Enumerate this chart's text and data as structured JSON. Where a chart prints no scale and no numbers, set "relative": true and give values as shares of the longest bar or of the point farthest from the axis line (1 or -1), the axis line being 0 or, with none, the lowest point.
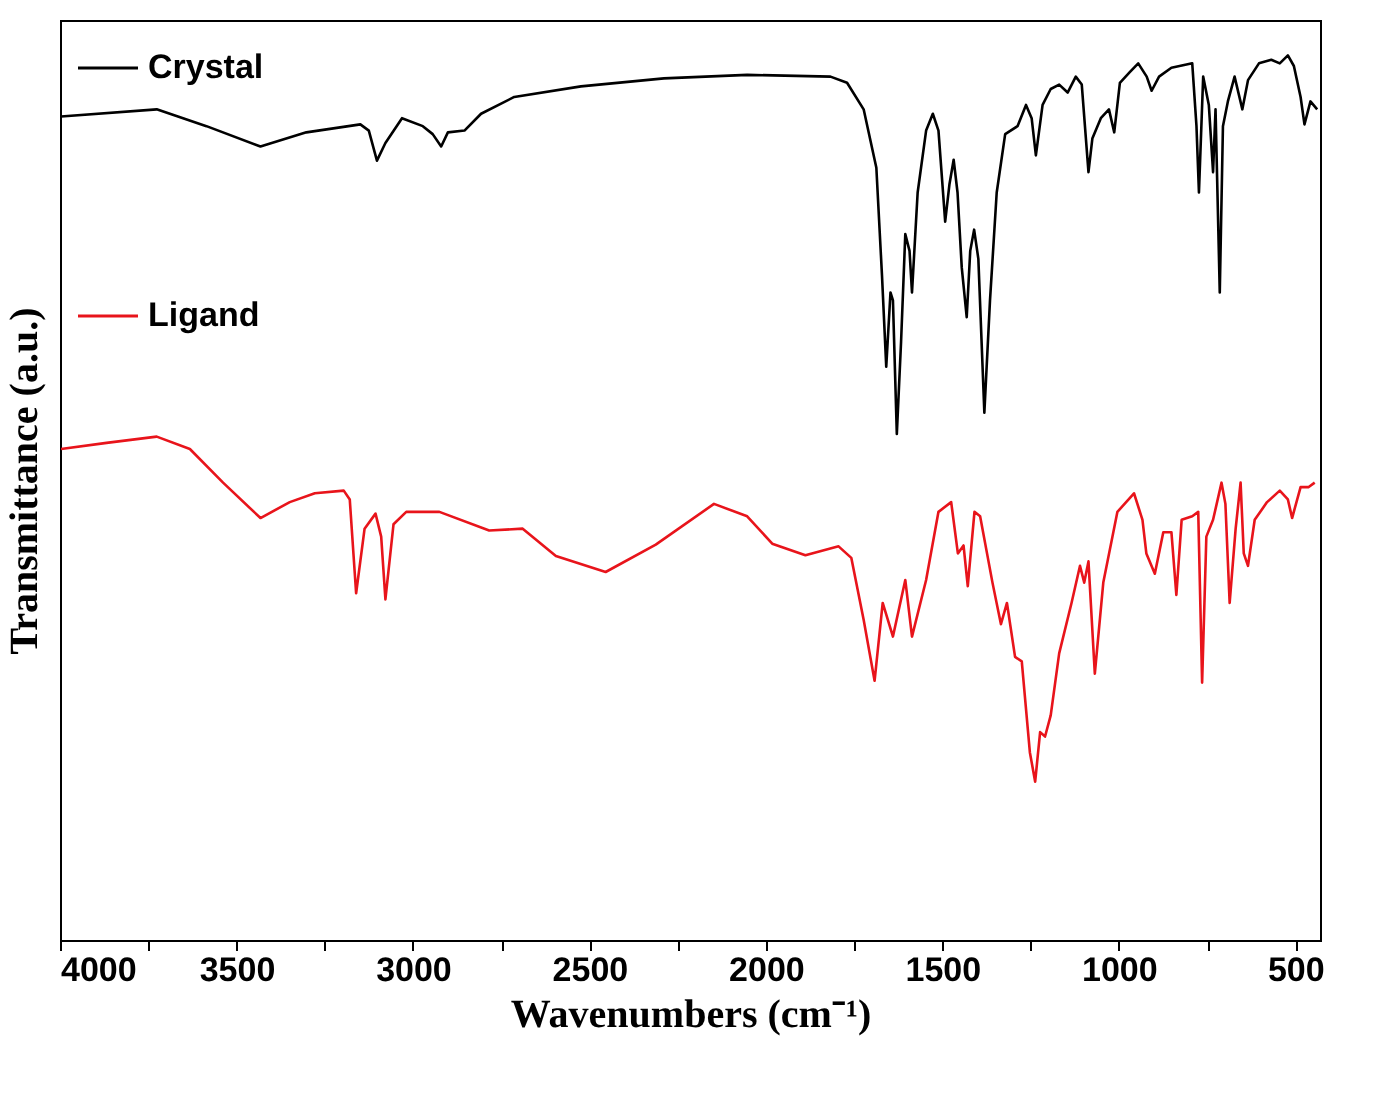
{
  "chart_data": {
    "type": "line",
    "relative": true,
    "xlabel": "Wavenumbers (cm⁻¹)",
    "ylabel": "Transmittance (a.u.)",
    "xlim": [
      4000,
      430
    ],
    "xticks": [
      4000,
      {
        "value": 3750,
        "label": null
      },
      3500,
      {
        "value": 3250,
        "label": null
      },
      3000,
      {
        "value": 2750,
        "label": null
      },
      2500,
      {
        "value": 2250,
        "label": null
      },
      2000,
      {
        "value": 1750,
        "label": null
      },
      1500,
      {
        "value": 1250,
        "label": null
      },
      1000,
      {
        "value": 750,
        "label": null
      },
      500
    ],
    "grid": false,
    "legend": "top left",
    "line_style": "solid",
    "marker": "none",
    "series": [
      {
        "name": "Crystal",
        "color": "#000000",
        "x": [
          3997,
          3726,
          3585,
          3432,
          3302,
          3149,
          3125,
          3102,
          3078,
          3031,
          2972,
          2944,
          2920,
          2901,
          2854,
          2807,
          2713,
          2524,
          2289,
          2053,
          1817,
          1770,
          1723,
          1687,
          1671,
          1659,
          1647,
          1640,
          1629,
          1617,
          1605,
          1593,
          1586,
          1570,
          1546,
          1527,
          1511,
          1492,
          1480,
          1468,
          1457,
          1445,
          1431,
          1421,
          1410,
          1398,
          1381,
          1365,
          1346,
          1322,
          1287,
          1263,
          1247,
          1235,
          1216,
          1193,
          1169,
          1145,
          1122,
          1105,
          1086,
          1075,
          1051,
          1028,
          1013,
          997,
          969,
          945,
          921,
          907,
          886,
          851,
          792,
          780,
          773,
          761,
          745,
          733,
          726,
          714,
          705,
          691,
          672,
          650,
          634,
          603,
          568,
          544,
          521,
          504,
          485,
          474,
          457,
          438
        ],
        "values": [
          0.931,
          0.939,
          0.92,
          0.897,
          0.913,
          0.922,
          0.915,
          0.881,
          0.901,
          0.929,
          0.92,
          0.911,
          0.897,
          0.913,
          0.915,
          0.934,
          0.953,
          0.965,
          0.974,
          0.978,
          0.976,
          0.969,
          0.939,
          0.873,
          0.751,
          0.648,
          0.732,
          0.723,
          0.572,
          0.676,
          0.798,
          0.779,
          0.732,
          0.845,
          0.915,
          0.934,
          0.915,
          0.812,
          0.854,
          0.882,
          0.845,
          0.76,
          0.704,
          0.779,
          0.803,
          0.77,
          0.596,
          0.723,
          0.845,
          0.911,
          0.92,
          0.944,
          0.929,
          0.887,
          0.944,
          0.962,
          0.967,
          0.958,
          0.976,
          0.967,
          0.868,
          0.906,
          0.929,
          0.939,
          0.913,
          0.969,
          0.981,
          0.991,
          0.976,
          0.96,
          0.976,
          0.986,
          0.991,
          0.92,
          0.845,
          0.976,
          0.944,
          0.868,
          0.939,
          0.732,
          0.92,
          0.948,
          0.976,
          0.939,
          0.972,
          0.991,
          0.995,
          0.991,
          1,
          0.988,
          0.953,
          0.922,
          0.948,
          0.939
        ]
      },
      {
        "name": "Ligand",
        "color": "#e8141b",
        "x": [
          3997,
          3868,
          3726,
          3632,
          3538,
          3432,
          3349,
          3278,
          3196,
          3179,
          3161,
          3137,
          3106,
          3090,
          3078,
          3055,
          3019,
          2925,
          2784,
          2689,
          2595,
          2454,
          2312,
          2147,
          2053,
          1982,
          1888,
          1794,
          1758,
          1723,
          1692,
          1669,
          1640,
          1605,
          1586,
          1546,
          1511,
          1475,
          1456,
          1440,
          1428,
          1409,
          1393,
          1358,
          1334,
          1317,
          1294,
          1275,
          1252,
          1237,
          1223,
          1209,
          1193,
          1169,
          1134,
          1110,
          1098,
          1086,
          1068,
          1044,
          1004,
          957,
          933,
          922,
          898,
          874,
          851,
          837,
          822,
          792,
          775,
          764,
          752,
          733,
          709,
          698,
          686,
          669,
          655,
          646,
          634,
          615,
          580,
          544,
          521,
          509,
          485,
          462,
          445
        ],
        "values": [
          0.555,
          0.562,
          0.569,
          0.555,
          0.517,
          0.477,
          0.495,
          0.505,
          0.508,
          0.498,
          0.392,
          0.465,
          0.482,
          0.456,
          0.385,
          0.47,
          0.484,
          0.484,
          0.463,
          0.465,
          0.434,
          0.416,
          0.447,
          0.493,
          0.479,
          0.448,
          0.435,
          0.445,
          0.432,
          0.362,
          0.293,
          0.381,
          0.343,
          0.407,
          0.343,
          0.407,
          0.484,
          0.495,
          0.437,
          0.446,
          0.4,
          0.484,
          0.479,
          0.404,
          0.357,
          0.381,
          0.32,
          0.315,
          0.212,
          0.179,
          0.235,
          0.23,
          0.254,
          0.324,
          0.381,
          0.423,
          0.404,
          0.428,
          0.301,
          0.404,
          0.484,
          0.505,
          0.475,
          0.437,
          0.414,
          0.461,
          0.461,
          0.39,
          0.475,
          0.479,
          0.484,
          0.291,
          0.456,
          0.475,
          0.517,
          0.493,
          0.381,
          0.465,
          0.517,
          0.437,
          0.423,
          0.475,
          0.495,
          0.508,
          0.498,
          0.477,
          0.512,
          0.512,
          0.517
        ]
      }
    ]
  }
}
